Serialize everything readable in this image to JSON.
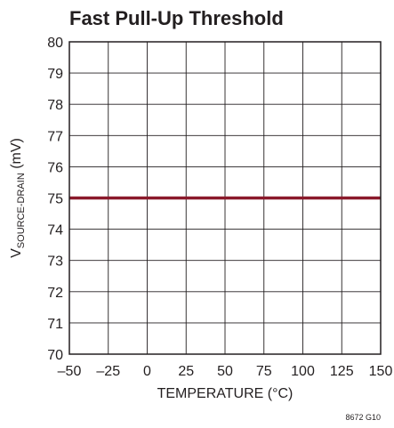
{
  "chart_data": {
    "type": "line",
    "title": "Fast Pull-Up Threshold",
    "xlabel": "TEMPERATURE (°C)",
    "ylabel": {
      "prefix": "V",
      "subscript": "SOURCE-DRAIN",
      "suffix": " (mV)"
    },
    "xlim": [
      -50,
      150
    ],
    "ylim": [
      70,
      80
    ],
    "x_ticks": [
      -50,
      -25,
      0,
      25,
      50,
      75,
      100,
      125,
      150
    ],
    "x_tick_labels": [
      "–50",
      "–25",
      "0",
      "25",
      "50",
      "75",
      "100",
      "125",
      "150"
    ],
    "y_ticks": [
      70,
      71,
      72,
      73,
      74,
      75,
      76,
      77,
      78,
      79,
      80
    ],
    "y_tick_labels": [
      "70",
      "71",
      "72",
      "73",
      "74",
      "75",
      "76",
      "77",
      "78",
      "79",
      "80"
    ],
    "grid": true,
    "series": [
      {
        "x": [
          -50,
          150
        ],
        "y": [
          75,
          75
        ],
        "color": "#8b1a2b"
      }
    ],
    "figure_code": "8672 G10"
  }
}
